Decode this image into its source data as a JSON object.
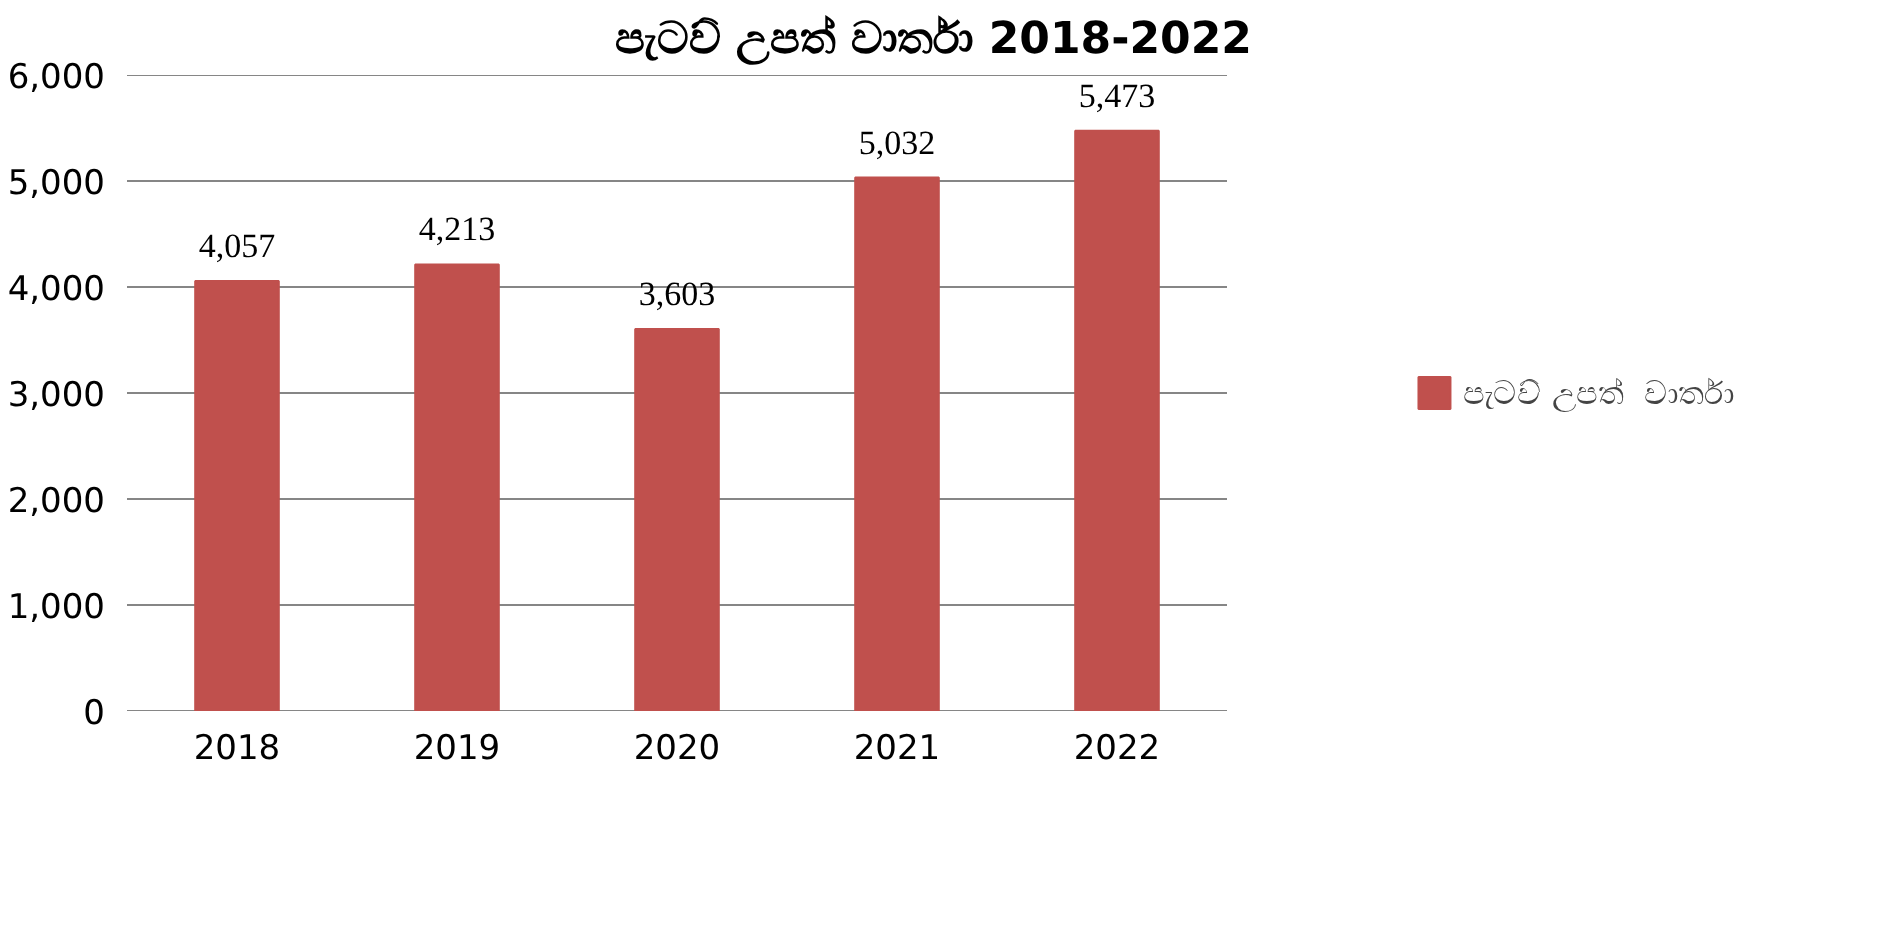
{
  "chart_data": {
    "type": "bar",
    "title": "පැටව් උපත්  වාර්තා 2018-2022",
    "categories": [
      "2018",
      "2019",
      "2020",
      "2021",
      "2022"
    ],
    "series": [
      {
        "name": "පැටව් උපත්  වාර්තා",
        "color": "#c0504d",
        "values": [
          4057,
          4213,
          3603,
          5032,
          5473
        ]
      }
    ],
    "ylim": [
      0,
      6000
    ],
    "yticks": [
      {
        "value": 0,
        "label": "0"
      },
      {
        "value": 1000,
        "label": "1,000"
      },
      {
        "value": 2000,
        "label": "2,000"
      },
      {
        "value": 3000,
        "label": "3,000"
      },
      {
        "value": 4000,
        "label": "4,000"
      },
      {
        "value": 5000,
        "label": "5,000"
      },
      {
        "value": 6000,
        "label": "6,000"
      }
    ],
    "grid": "y",
    "legend": "right",
    "value_labels": [
      "4,057",
      "4,213",
      "3,603",
      "5,032",
      "5,473"
    ]
  }
}
